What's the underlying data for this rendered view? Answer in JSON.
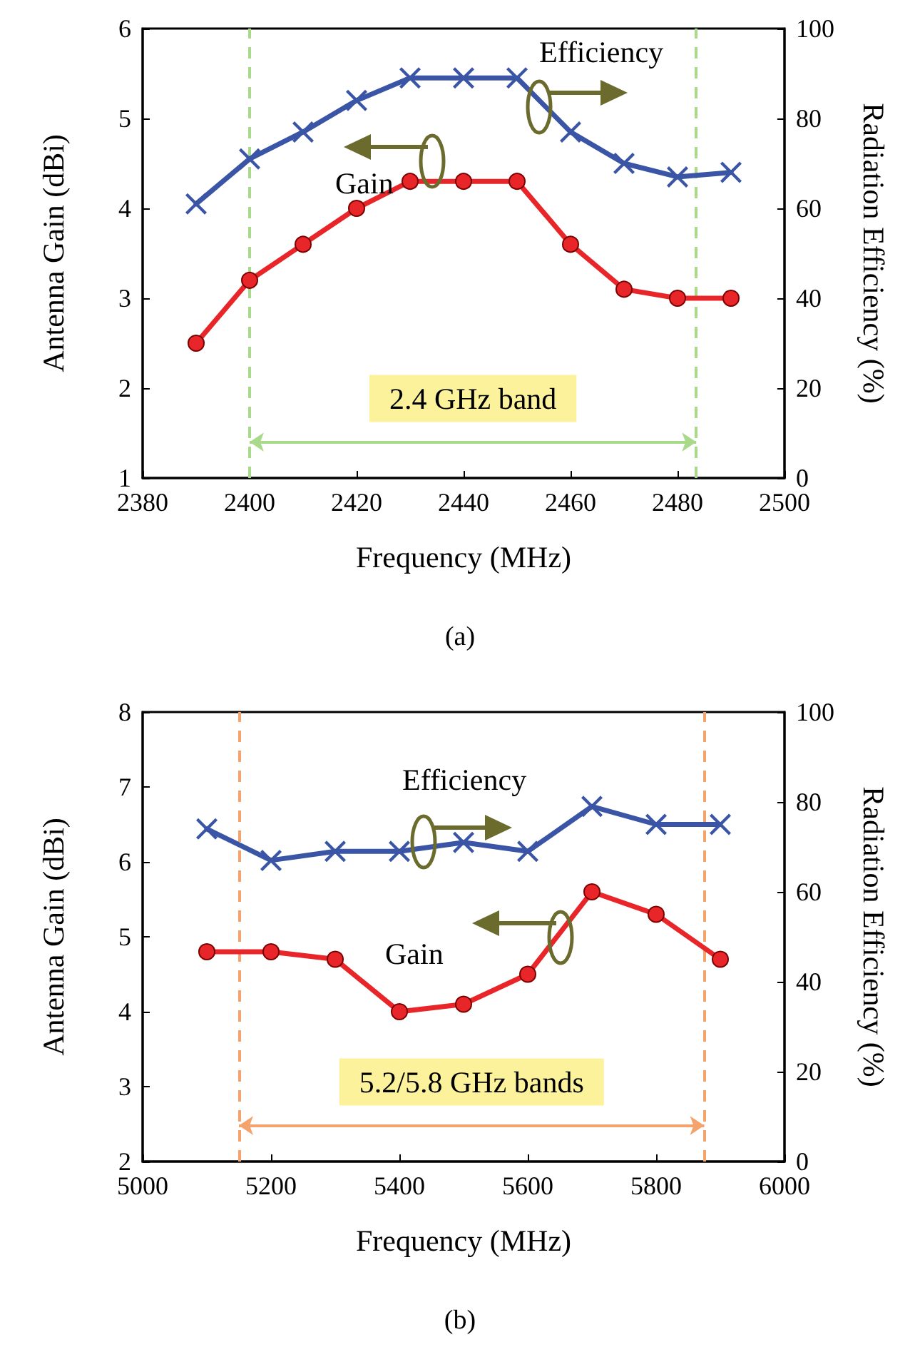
{
  "chart_data": [
    {
      "type": "line",
      "title": "(a)",
      "xlabel": "Frequency (MHz)",
      "ylabel": "Antenna Gain (dBi)",
      "y2label": "Radiation Efficiency (%)",
      "x": [
        2390,
        2400,
        2410,
        2420,
        2430,
        2440,
        2450,
        2460,
        2470,
        2480,
        2490
      ],
      "series": [
        {
          "name": "Gain",
          "color": "#e8262a",
          "marker": "circle",
          "values": [
            2.5,
            3.2,
            3.6,
            4.0,
            4.3,
            4.3,
            4.3,
            3.6,
            3.1,
            3.0,
            3.0
          ]
        },
        {
          "name": "Efficiency",
          "color": "#3a55a5",
          "marker": "cross",
          "axis": "y2",
          "values": [
            61,
            71,
            77,
            84,
            89,
            89,
            89,
            77,
            70,
            67,
            68
          ]
        }
      ],
      "xlim": [
        2380,
        2500
      ],
      "xticks": [
        2380,
        2400,
        2420,
        2440,
        2460,
        2480,
        2500
      ],
      "ylim": [
        1,
        6
      ],
      "yticks": [
        1,
        2,
        3,
        4,
        5,
        6
      ],
      "y2lim": [
        0,
        100
      ],
      "y2ticks": [
        0,
        20,
        40,
        60,
        80,
        100
      ],
      "ref_lines": [
        {
          "axis": "x",
          "value": 2400,
          "color": "#a9d98a",
          "line_style": "dashed"
        },
        {
          "axis": "x",
          "value": 2483.5,
          "color": "#a9d98a",
          "line_style": "dashed"
        }
      ],
      "annotations": [
        "2.4 GHz band"
      ],
      "grid": false,
      "legend": false
    },
    {
      "type": "line",
      "title": "(b)",
      "xlabel": "Frequency (MHz)",
      "ylabel": "Antenna Gain (dBi)",
      "y2label": "Radiation Efficiency (%)",
      "x": [
        5100,
        5200,
        5300,
        5400,
        5500,
        5600,
        5700,
        5800,
        5900
      ],
      "series": [
        {
          "name": "Gain",
          "color": "#e8262a",
          "marker": "circle",
          "values": [
            4.8,
            4.8,
            4.7,
            4.0,
            4.1,
            4.5,
            5.6,
            5.3,
            4.7
          ]
        },
        {
          "name": "Efficiency",
          "color": "#3a55a5",
          "marker": "cross",
          "axis": "y2",
          "values": [
            74,
            67,
            69,
            69,
            71,
            69,
            79,
            75,
            75
          ]
        }
      ],
      "xlim": [
        5000,
        6000
      ],
      "xticks": [
        5000,
        5200,
        5400,
        5600,
        5800,
        6000
      ],
      "ylim": [
        2,
        8
      ],
      "yticks": [
        2,
        3,
        4,
        5,
        6,
        7,
        8
      ],
      "y2lim": [
        0,
        100
      ],
      "y2ticks": [
        0,
        20,
        40,
        60,
        80,
        100
      ],
      "ref_lines": [
        {
          "axis": "x",
          "value": 5150,
          "color": "#f4a36c",
          "line_style": "dashed"
        },
        {
          "axis": "x",
          "value": 5875,
          "color": "#f4a36c",
          "line_style": "dashed"
        }
      ],
      "annotations": [
        "5.2/5.8 GHz bands"
      ],
      "grid": false,
      "legend": false
    }
  ]
}
